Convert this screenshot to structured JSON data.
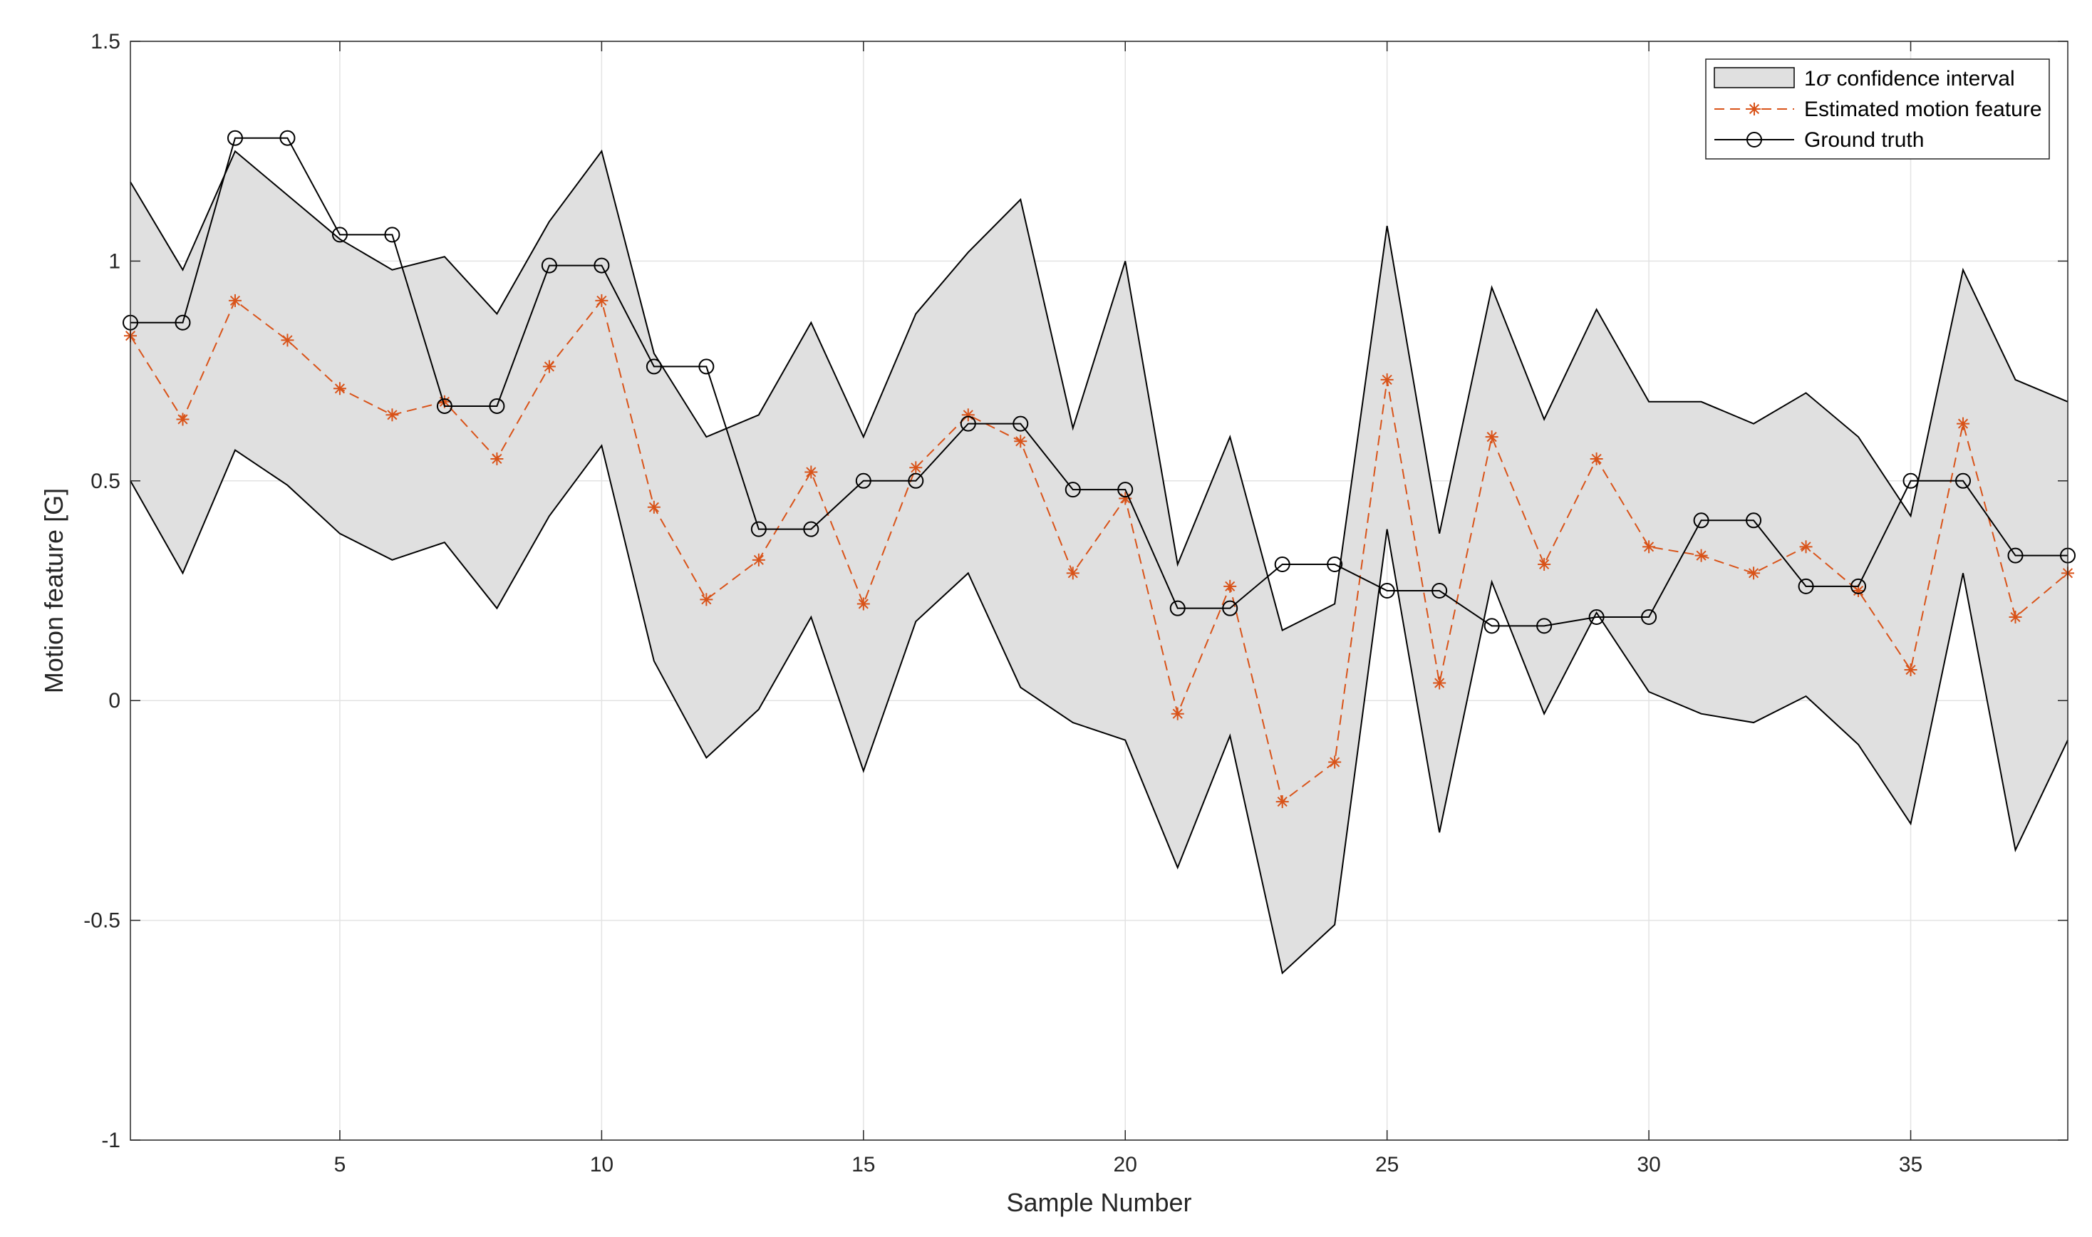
{
  "chart_data": {
    "type": "line",
    "title": "",
    "xlabel": "Sample Number",
    "ylabel": "Motion feature [G]",
    "xlim": [
      1,
      38
    ],
    "ylim": [
      -1,
      1.5
    ],
    "xticks": [
      5,
      10,
      15,
      20,
      25,
      30,
      35
    ],
    "xtick_labels": [
      "5",
      "10",
      "15",
      "20",
      "25",
      "30",
      "35"
    ],
    "yticks": [
      -1,
      -0.5,
      0,
      0.5,
      1,
      1.5
    ],
    "ytick_labels": [
      "-1",
      "-0.5",
      "0",
      "0.5",
      "1",
      "1.5"
    ],
    "grid": true,
    "legend_position": "top-right",
    "x": [
      1,
      2,
      3,
      4,
      5,
      6,
      7,
      8,
      9,
      10,
      11,
      12,
      13,
      14,
      15,
      16,
      17,
      18,
      19,
      20,
      21,
      22,
      23,
      24,
      25,
      26,
      27,
      28,
      29,
      30,
      31,
      32,
      33,
      34,
      35,
      36,
      37,
      38
    ],
    "series": [
      {
        "name": "1σ confidence interval",
        "legend_prefix": "1",
        "legend_symbol": "σ",
        "legend_suffix": " confidence interval",
        "kind": "band",
        "color": "#e0e0e0",
        "edge_color": "#000000",
        "upper": [
          1.18,
          0.98,
          1.25,
          1.15,
          1.05,
          0.98,
          1.01,
          0.88,
          1.09,
          1.25,
          0.79,
          0.6,
          0.65,
          0.86,
          0.6,
          0.88,
          1.02,
          1.14,
          0.62,
          1.0,
          0.31,
          0.6,
          0.16,
          0.22,
          1.08,
          0.38,
          0.94,
          0.64,
          0.89,
          0.68,
          0.68,
          0.63,
          0.7,
          0.6,
          0.42,
          0.98,
          0.73,
          0.68
        ],
        "lower": [
          0.5,
          0.29,
          0.57,
          0.49,
          0.38,
          0.32,
          0.36,
          0.21,
          0.42,
          0.58,
          0.09,
          -0.13,
          -0.02,
          0.19,
          -0.16,
          0.18,
          0.29,
          0.03,
          -0.05,
          -0.09,
          -0.38,
          -0.08,
          -0.62,
          -0.51,
          0.39,
          -0.3,
          0.27,
          -0.03,
          0.2,
          0.02,
          -0.03,
          -0.05,
          0.01,
          -0.1,
          -0.28,
          0.29,
          -0.34,
          -0.09
        ]
      },
      {
        "name": "Estimated motion feature",
        "kind": "line",
        "color": "#d95319",
        "dashed": true,
        "marker": "asterisk",
        "values": [
          0.83,
          0.64,
          0.91,
          0.82,
          0.71,
          0.65,
          0.68,
          0.55,
          0.76,
          0.91,
          0.44,
          0.23,
          0.32,
          0.52,
          0.22,
          0.53,
          0.65,
          0.59,
          0.29,
          0.46,
          -0.03,
          0.26,
          -0.23,
          -0.14,
          0.73,
          0.04,
          0.6,
          0.31,
          0.55,
          0.35,
          0.33,
          0.29,
          0.35,
          0.25,
          0.07,
          0.63,
          0.19,
          0.29
        ]
      },
      {
        "name": "Ground truth",
        "kind": "step",
        "color": "#000000",
        "marker": "circle",
        "values": [
          0.86,
          0.86,
          1.28,
          1.28,
          1.06,
          1.06,
          0.67,
          0.67,
          0.99,
          0.99,
          0.76,
          0.76,
          0.39,
          0.39,
          0.5,
          0.5,
          0.63,
          0.63,
          0.48,
          0.48,
          0.21,
          0.21,
          0.31,
          0.31,
          0.25,
          0.25,
          0.17,
          0.17,
          0.19,
          0.19,
          0.41,
          0.41,
          0.26,
          0.26,
          0.5,
          0.5,
          0.33,
          0.33
        ]
      }
    ]
  }
}
